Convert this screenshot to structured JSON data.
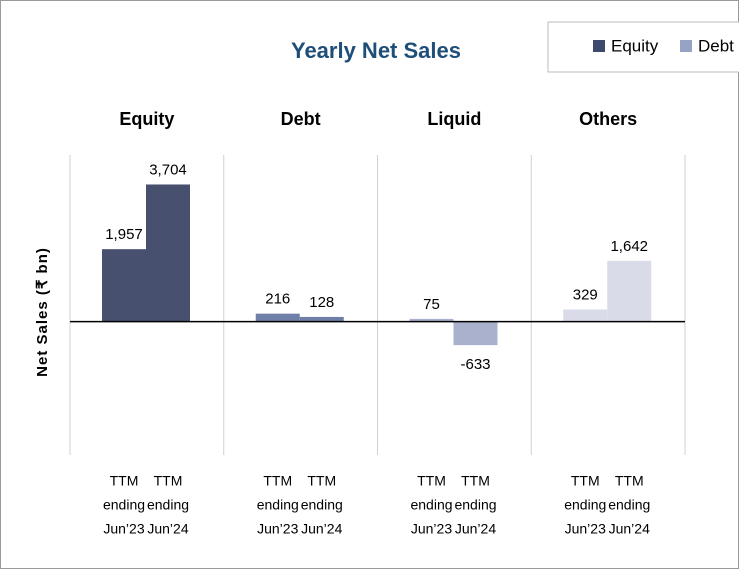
{
  "chart_data": {
    "type": "bar",
    "title": "Yearly Net Sales",
    "y_label": "Net Sales (₹ bn)",
    "x_labels": [
      [
        "TTM",
        "ending",
        "Jun’23"
      ],
      [
        "TTM",
        "ending",
        "Jun’24"
      ]
    ],
    "groups": [
      {
        "name": "Equity",
        "color": "#47506e",
        "values": [
          1957,
          3704
        ],
        "value_labels": [
          "1,957",
          "3,704"
        ]
      },
      {
        "name": "Debt",
        "color": "#6f7fa8",
        "values": [
          216,
          128
        ],
        "value_labels": [
          "216",
          "128"
        ]
      },
      {
        "name": "Liquid",
        "color": "#a9b1cc",
        "values": [
          75,
          -633
        ],
        "value_labels": [
          "75",
          "-633"
        ]
      },
      {
        "name": "Others",
        "color": "#d9dce8",
        "values": [
          329,
          1642
        ],
        "value_labels": [
          "329",
          "1,642"
        ]
      }
    ],
    "legend": [
      {
        "name": "Equity",
        "color": "#3e4a6c"
      },
      {
        "name": "Debt",
        "color": "#97a3c4"
      }
    ],
    "ylim": [
      -3600,
      4500
    ]
  }
}
